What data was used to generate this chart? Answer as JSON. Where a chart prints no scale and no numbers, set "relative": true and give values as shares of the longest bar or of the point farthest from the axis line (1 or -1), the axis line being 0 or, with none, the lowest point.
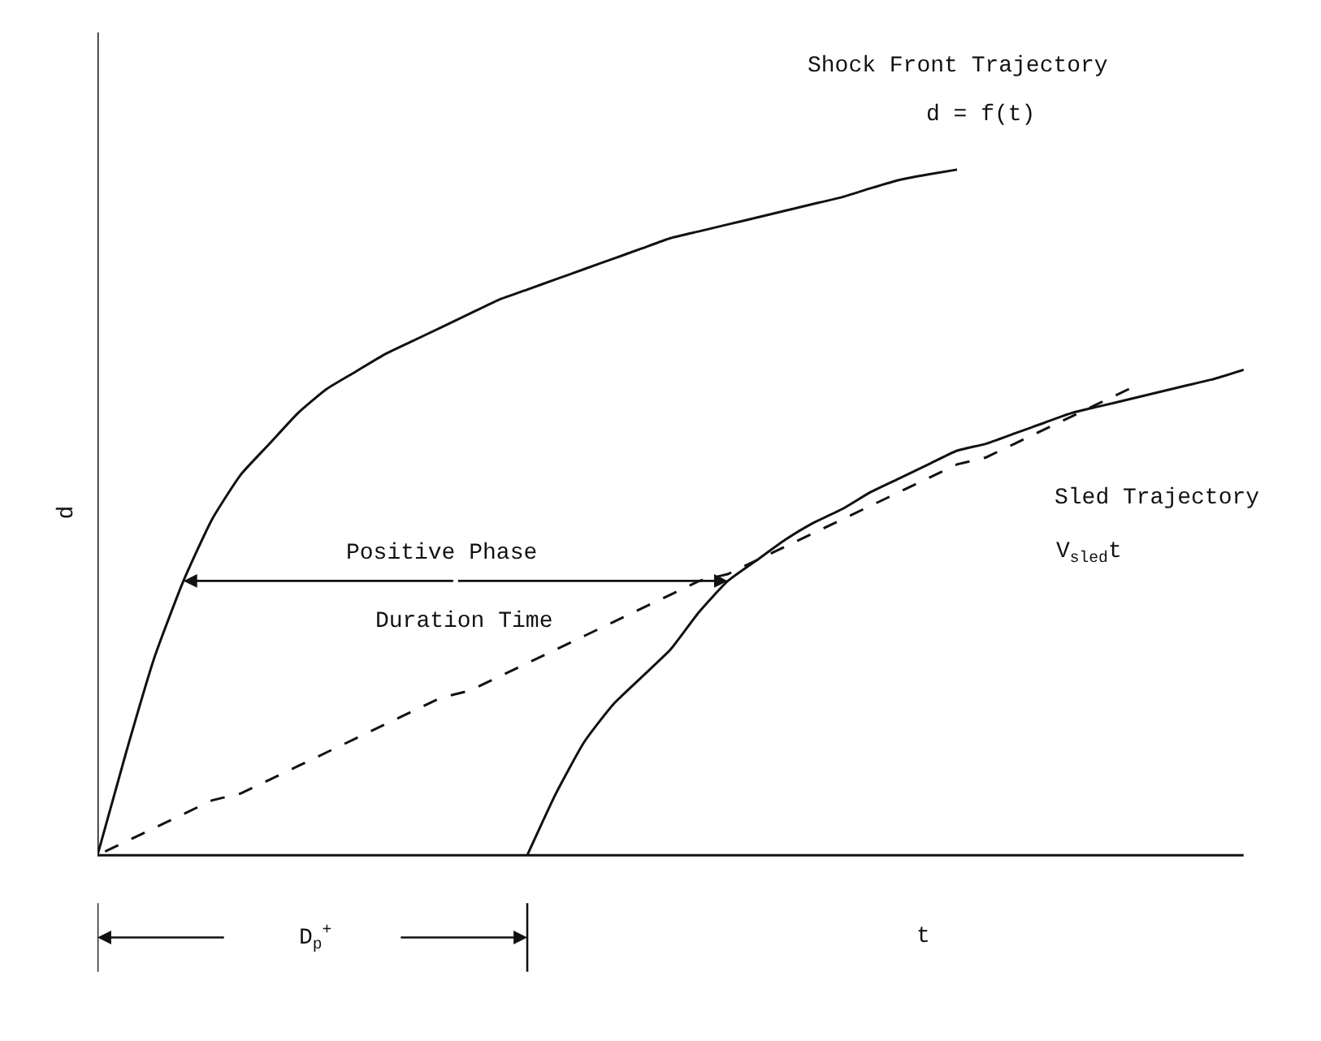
{
  "chart_data": {
    "type": "line",
    "relative": true,
    "xlabel": "t",
    "ylabel": "d",
    "grid": false,
    "marker": "none",
    "categories": [
      null,
      null,
      null,
      null,
      null,
      null,
      null,
      null,
      null,
      null,
      null,
      null,
      null,
      null,
      null,
      null,
      null,
      null,
      null,
      null,
      null,
      null,
      null,
      null,
      null,
      null,
      null,
      null,
      null,
      null,
      null,
      null,
      null,
      null,
      null,
      null,
      null,
      null,
      null,
      null,
      null
    ],
    "series": [
      {
        "color": "#111111",
        "line_style": "solid",
        "values": [
          0,
          0.15,
          0.29,
          0.4,
          0.49,
          0.555,
          0.6,
          0.645,
          0.68,
          0.705,
          0.73,
          0.75,
          0.77,
          0.79,
          0.81,
          0.825,
          0.84,
          0.855,
          0.87,
          0.885,
          0.9,
          0.91,
          0.92,
          0.93,
          0.94,
          0.95,
          0.96,
          0.973,
          0.985,
          0.993,
          1.0,
          null,
          null,
          null,
          null,
          null,
          null,
          null,
          null,
          null,
          null
        ]
      },
      {
        "color": "#111111",
        "line_style": "solid",
        "values": [
          null,
          null,
          null,
          null,
          null,
          null,
          null,
          null,
          null,
          null,
          null,
          null,
          null,
          null,
          null,
          0,
          0.09,
          0.166,
          0.22,
          0.26,
          0.3,
          0.355,
          0.4,
          0.43,
          0.46,
          0.485,
          0.505,
          0.53,
          0.55,
          0.57,
          0.59,
          0.6,
          0.615,
          0.63,
          0.645,
          0.655,
          0.665,
          0.675,
          0.685,
          0.695,
          0.708
        ]
      },
      {
        "color": "#111111",
        "line_style": "dashed",
        "values": [
          0,
          0.02,
          0.04,
          0.06,
          0.08,
          0.09,
          0.11,
          0.13,
          0.15,
          0.17,
          0.19,
          0.21,
          0.23,
          0.24,
          0.26,
          0.28,
          0.3,
          0.32,
          0.34,
          0.36,
          0.38,
          0.4,
          0.41,
          0.43,
          0.45,
          0.47,
          0.49,
          0.51,
          0.53,
          0.55,
          0.57,
          0.58,
          0.6,
          0.62,
          0.64,
          0.66,
          0.68,
          null,
          null,
          null,
          null
        ]
      }
    ],
    "annotations": [
      "Shock Front Trajectory",
      "d = f(t)",
      "Sled Trajectory",
      "V$_{sled}$t",
      "Positive Phase",
      "Duration Time",
      "D$_{p}$$^{+}$"
    ]
  }
}
